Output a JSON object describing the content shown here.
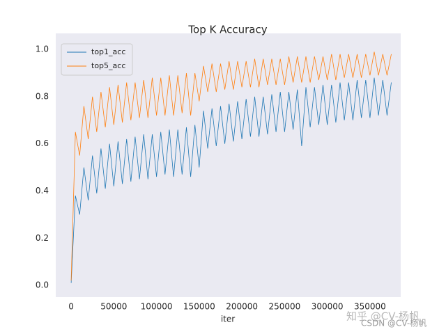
{
  "chart_data": {
    "type": "line",
    "title": "Top K Accuracy",
    "x_label": "iter",
    "x": [
      0,
      5000,
      10000,
      15000,
      20000,
      25000,
      30000,
      35000,
      40000,
      45000,
      50000,
      55000,
      60000,
      65000,
      70000,
      75000,
      80000,
      85000,
      90000,
      95000,
      100000,
      105000,
      110000,
      115000,
      120000,
      125000,
      130000,
      135000,
      140000,
      145000,
      150000,
      155000,
      160000,
      165000,
      170000,
      175000,
      180000,
      185000,
      190000,
      195000,
      200000,
      205000,
      210000,
      215000,
      220000,
      225000,
      230000,
      235000,
      240000,
      245000,
      250000,
      255000,
      260000,
      265000,
      270000,
      275000,
      280000,
      285000,
      290000,
      295000,
      300000,
      305000,
      310000,
      315000,
      320000,
      325000,
      330000,
      335000,
      340000,
      345000,
      350000,
      355000,
      360000,
      365000,
      370000,
      375000
    ],
    "series": [
      {
        "name": "top1_acc",
        "color": "#1f77b4",
        "values": [
          0.01,
          0.38,
          0.3,
          0.5,
          0.36,
          0.55,
          0.39,
          0.58,
          0.41,
          0.6,
          0.42,
          0.61,
          0.43,
          0.62,
          0.44,
          0.63,
          0.45,
          0.64,
          0.45,
          0.64,
          0.46,
          0.65,
          0.47,
          0.66,
          0.46,
          0.66,
          0.47,
          0.67,
          0.46,
          0.68,
          0.5,
          0.74,
          0.58,
          0.75,
          0.59,
          0.76,
          0.6,
          0.77,
          0.61,
          0.78,
          0.62,
          0.79,
          0.63,
          0.8,
          0.63,
          0.8,
          0.64,
          0.81,
          0.65,
          0.82,
          0.65,
          0.82,
          0.66,
          0.83,
          0.59,
          0.84,
          0.67,
          0.84,
          0.68,
          0.85,
          0.68,
          0.85,
          0.69,
          0.86,
          0.7,
          0.86,
          0.7,
          0.87,
          0.71,
          0.87,
          0.71,
          0.88,
          0.72,
          0.87,
          0.72,
          0.86
        ]
      },
      {
        "name": "top5_acc",
        "color": "#ff7f0e",
        "values": [
          0.02,
          0.65,
          0.55,
          0.76,
          0.62,
          0.8,
          0.65,
          0.82,
          0.67,
          0.84,
          0.68,
          0.85,
          0.69,
          0.86,
          0.7,
          0.86,
          0.71,
          0.87,
          0.71,
          0.88,
          0.72,
          0.88,
          0.72,
          0.89,
          0.72,
          0.89,
          0.73,
          0.9,
          0.72,
          0.9,
          0.78,
          0.93,
          0.82,
          0.94,
          0.82,
          0.94,
          0.83,
          0.95,
          0.83,
          0.95,
          0.84,
          0.95,
          0.84,
          0.96,
          0.84,
          0.96,
          0.85,
          0.96,
          0.85,
          0.96,
          0.85,
          0.97,
          0.86,
          0.97,
          0.86,
          0.97,
          0.86,
          0.97,
          0.87,
          0.97,
          0.87,
          0.98,
          0.87,
          0.98,
          0.88,
          0.98,
          0.88,
          0.98,
          0.88,
          0.98,
          0.89,
          0.99,
          0.89,
          0.98,
          0.89,
          0.98
        ]
      }
    ],
    "xlim": [
      -18000,
      386000
    ],
    "ylim": [
      -0.05,
      1.068
    ],
    "xticks": [
      0,
      50000,
      100000,
      150000,
      200000,
      250000,
      300000,
      350000
    ],
    "yticks": [
      {
        "value": 0,
        "label": "0.0"
      },
      0.2,
      0.4,
      0.6,
      0.8,
      {
        "value": 1,
        "label": "1.0"
      }
    ],
    "legend": "upper left",
    "background": "#eaeaf2"
  },
  "watermarks": [
    "知乎 @CV-杨帆",
    "CSDN @CV-杨帆"
  ]
}
